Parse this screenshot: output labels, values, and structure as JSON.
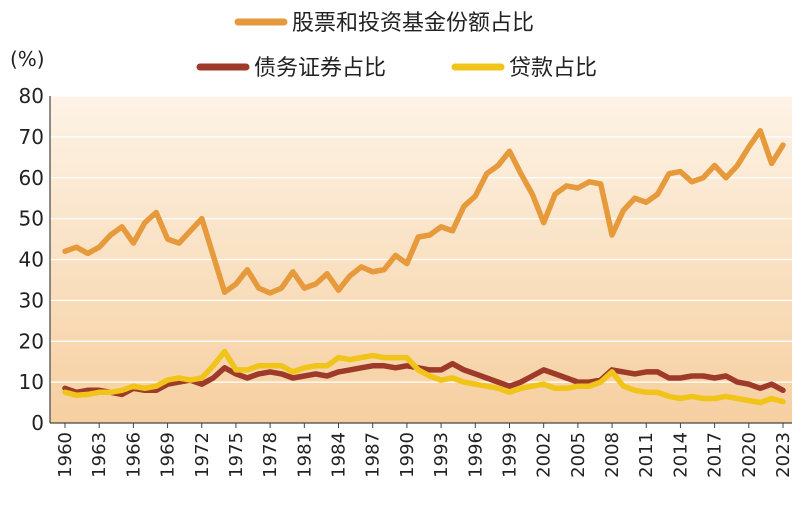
{
  "chart_data": {
    "type": "line",
    "title": "",
    "xlabel": "",
    "ylabel": "(%)",
    "ylim": [
      0,
      80
    ],
    "yticks": [
      0,
      10,
      20,
      30,
      40,
      50,
      60,
      70,
      80
    ],
    "grid": true,
    "legend_position": "top",
    "x": [
      1960,
      1961,
      1962,
      1963,
      1964,
      1965,
      1966,
      1967,
      1968,
      1969,
      1970,
      1971,
      1972,
      1973,
      1974,
      1975,
      1976,
      1977,
      1978,
      1979,
      1980,
      1981,
      1982,
      1983,
      1984,
      1985,
      1986,
      1987,
      1988,
      1989,
      1990,
      1991,
      1992,
      1993,
      1994,
      1995,
      1996,
      1997,
      1998,
      1999,
      2000,
      2001,
      2002,
      2003,
      2004,
      2005,
      2006,
      2007,
      2008,
      2009,
      2010,
      2011,
      2012,
      2013,
      2014,
      2015,
      2016,
      2017,
      2018,
      2019,
      2020,
      2021,
      2022,
      2023
    ],
    "xtick_labels": [
      "1960",
      "1963",
      "1966",
      "1969",
      "1972",
      "1975",
      "1978",
      "1981",
      "1984",
      "1987",
      "1990",
      "1993",
      "1996",
      "1999",
      "2002",
      "2005",
      "2008",
      "2011",
      "2014",
      "2017",
      "2020",
      "2023"
    ],
    "series": [
      {
        "name": "股票和投资基金份额占比",
        "color": "#e69a3c",
        "values": [
          42,
          43,
          41.5,
          43,
          46,
          48,
          44,
          49,
          51.5,
          45,
          44,
          47,
          50,
          41,
          32,
          34,
          37.5,
          33,
          31.8,
          33,
          37,
          33,
          34,
          36.5,
          32.5,
          36,
          38.2,
          37,
          37.5,
          41,
          39,
          45.5,
          46,
          48,
          47,
          53,
          55.5,
          61,
          63,
          66.5,
          61,
          56,
          49,
          56,
          58,
          57.5,
          59,
          58.5,
          46,
          52,
          55,
          54,
          56,
          61,
          61.5,
          59,
          60,
          63,
          60,
          63,
          67.5,
          71.5,
          63.5,
          68
        ]
      },
      {
        "name": "债务证券占比",
        "color": "#9e3a2a",
        "values": [
          8.5,
          7.5,
          8,
          8,
          7.5,
          7,
          8.5,
          8,
          8,
          9.5,
          10,
          10.5,
          9.5,
          11,
          13.5,
          12,
          11,
          12,
          12.5,
          12,
          11,
          11.5,
          12,
          11.5,
          12.5,
          13,
          13.5,
          14,
          14,
          13.5,
          14,
          13.5,
          13,
          13,
          14.5,
          13,
          12,
          11,
          10,
          9,
          10,
          11.5,
          13,
          12,
          11,
          10,
          10,
          10.5,
          13,
          12.5,
          12,
          12.5,
          12.5,
          11,
          11,
          11.5,
          11.5,
          11,
          11.5,
          10,
          9.5,
          8.5,
          9.5,
          8
        ]
      },
      {
        "name": "贷款占比",
        "color": "#f0c419",
        "values": [
          7.5,
          6.8,
          7,
          7.5,
          7.5,
          8,
          9,
          8.5,
          9,
          10.5,
          11,
          10.5,
          11,
          14,
          17.5,
          13,
          13,
          14,
          14,
          14,
          12.5,
          13.5,
          14,
          14,
          16,
          15.5,
          16,
          16.5,
          16,
          16,
          16,
          13,
          11.5,
          10.5,
          11,
          10,
          9.5,
          9,
          8.5,
          7.5,
          8.5,
          9,
          9.5,
          8.5,
          8.5,
          9,
          9,
          10,
          12.5,
          9,
          8,
          7.5,
          7.5,
          6.5,
          6,
          6.5,
          6,
          6,
          6.5,
          6,
          5.5,
          5,
          6,
          5.2
        ]
      }
    ]
  },
  "legend": {
    "item1": "股票和投资基金份额占比",
    "item2": "债务证券占比",
    "item3": "贷款占比"
  }
}
